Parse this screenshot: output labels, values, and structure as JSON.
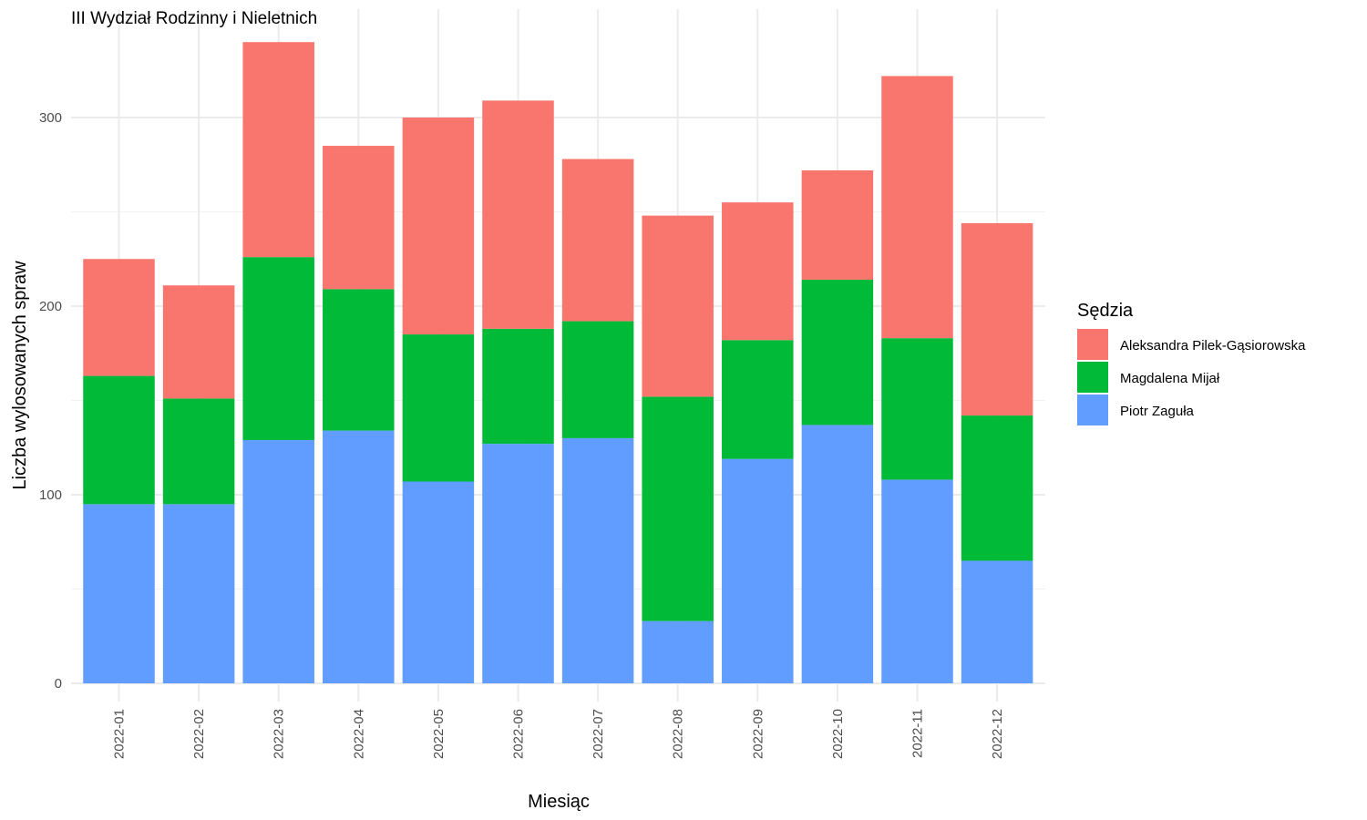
{
  "chart_data": {
    "type": "bar",
    "stacked": true,
    "title": "III Wydział Rodzinny i Nieletnich",
    "xlabel": "Miesiąc",
    "ylabel": "Liczba wylosowanych spraw",
    "ylim": [
      0,
      340
    ],
    "yticks": [
      0,
      100,
      200,
      300
    ],
    "grid": true,
    "legend": {
      "title": "Sędzia",
      "position": "right"
    },
    "categories": [
      "2022-01",
      "2022-02",
      "2022-03",
      "2022-04",
      "2022-05",
      "2022-06",
      "2022-07",
      "2022-08",
      "2022-09",
      "2022-10",
      "2022-11",
      "2022-12"
    ],
    "series": [
      {
        "name": "Aleksandra Pilek-Gąsiorowska",
        "color": "#F8766D",
        "values": [
          62,
          60,
          114,
          76,
          115,
          121,
          86,
          96,
          73,
          58,
          139,
          102
        ]
      },
      {
        "name": "Magdalena Mijał",
        "color": "#00BA38",
        "values": [
          68,
          56,
          97,
          75,
          78,
          61,
          62,
          119,
          63,
          77,
          75,
          77
        ]
      },
      {
        "name": "Piotr Zaguła",
        "color": "#619CFF",
        "values": [
          95,
          95,
          129,
          134,
          107,
          127,
          130,
          33,
          119,
          137,
          108,
          65
        ]
      }
    ]
  }
}
